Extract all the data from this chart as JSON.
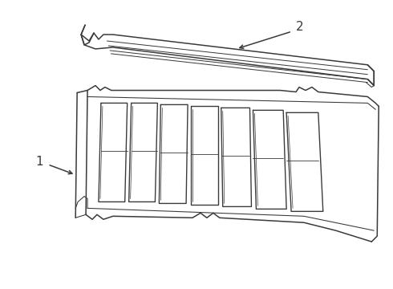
{
  "background_color": "#ffffff",
  "line_color": "#3a3a3a",
  "line_width": 1.1,
  "label1": "1",
  "label2": "2",
  "font_size_labels": 11
}
